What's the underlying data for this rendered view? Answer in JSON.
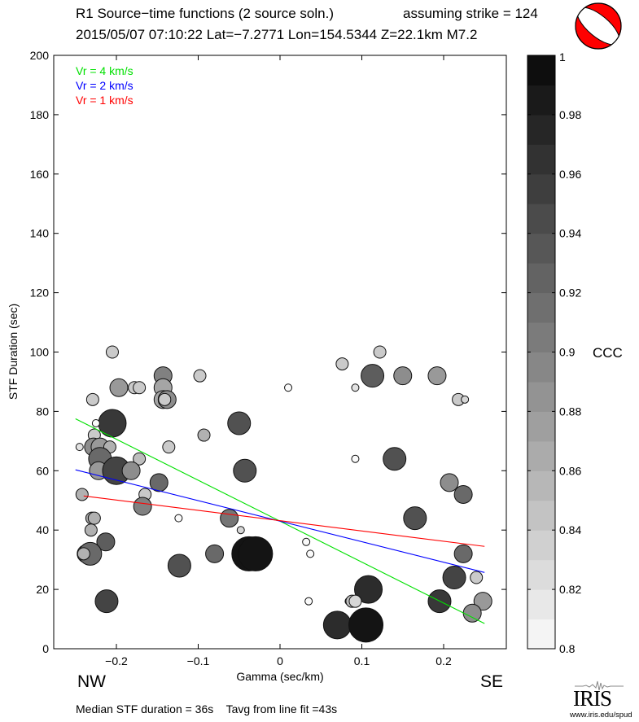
{
  "header": {
    "title": "R1 Source−time functions (2 source soln.)",
    "strike": "assuming strike = 124",
    "event": "2015/05/07 07:10:22  Lat=−7.2771 Lon=154.5344  Z=22.1km  M7.2"
  },
  "direction_labels": {
    "left": "NW",
    "right": "SE"
  },
  "footer": {
    "summary": "Median STF duration = 36s    Tavg from line fit =43s",
    "logo_text": "IRIS",
    "logo_url": "www.iris.edu/spud"
  },
  "colors": {
    "vr4": "#00e000",
    "vr2": "#0000ff",
    "vr1": "#ff0000",
    "beachball": "#ff0000"
  },
  "chart_data": {
    "type": "scatter",
    "xlabel": "Gamma (sec/km)",
    "ylabel": "STF Duration (sec)",
    "xlim": [
      -0.27,
      0.275
    ],
    "ylim": [
      0,
      200
    ],
    "xticks": [
      -0.2,
      -0.1,
      0,
      0.1,
      0.2
    ],
    "xtick_labels": [
      "−0.2",
      "−0.1",
      "0",
      "0.1",
      "0.2"
    ],
    "yticks": [
      0,
      20,
      40,
      60,
      80,
      100,
      120,
      140,
      160,
      180,
      200
    ],
    "ytick_labels": [
      "0",
      "20",
      "40",
      "60",
      "80",
      "100",
      "120",
      "140",
      "160",
      "180",
      "200"
    ],
    "grid": false,
    "legend": {
      "placement": "top-left",
      "entries": [
        {
          "label": "Vr = 4 km/s",
          "color": "#00e000"
        },
        {
          "label": "Vr = 2 km/s",
          "color": "#0000ff"
        },
        {
          "label": "Vr = 1 km/s",
          "color": "#ff0000"
        }
      ]
    },
    "lines": [
      {
        "name": "Vr = 4 km/s",
        "color": "#00e000",
        "x": [
          -0.25,
          0.25
        ],
        "y": [
          77.5,
          8.5
        ]
      },
      {
        "name": "Vr = 2 km/s",
        "color": "#0000ff",
        "x": [
          -0.25,
          0.25
        ],
        "y": [
          60.3,
          25.7
        ]
      },
      {
        "name": "Vr = 1 km/s",
        "color": "#ff0000",
        "x": [
          -0.24,
          0.25
        ],
        "y": [
          51.5,
          34.5
        ]
      }
    ],
    "colorbar": {
      "label": "CCC",
      "range": [
        0.8,
        1
      ],
      "ticks": [
        0.8,
        0.82,
        0.84,
        0.86,
        0.88,
        0.9,
        0.92,
        0.94,
        0.96,
        0.98,
        1
      ],
      "tick_labels": [
        "0.8",
        "0.82",
        "0.84",
        "0.86",
        "0.88",
        "0.9",
        "0.92",
        "0.94",
        "0.96",
        "0.98",
        "1"
      ],
      "bands": 20
    },
    "points": [
      {
        "x": -0.205,
        "y": 100,
        "ccc": 0.84,
        "size": 1
      },
      {
        "x": -0.098,
        "y": 92,
        "ccc": 0.84,
        "size": 1
      },
      {
        "x": -0.143,
        "y": 92,
        "ccc": 0.9,
        "size": 2
      },
      {
        "x": -0.143,
        "y": 88,
        "ccc": 0.87,
        "size": 2
      },
      {
        "x": -0.197,
        "y": 88,
        "ccc": 0.88,
        "size": 2
      },
      {
        "x": -0.178,
        "y": 88,
        "ccc": 0.84,
        "size": 1
      },
      {
        "x": -0.172,
        "y": 88,
        "ccc": 0.84,
        "size": 1
      },
      {
        "x": -0.143,
        "y": 84,
        "ccc": 0.87,
        "size": 2
      },
      {
        "x": -0.138,
        "y": 84,
        "ccc": 0.89,
        "size": 2
      },
      {
        "x": -0.141,
        "y": 84,
        "ccc": 0.84,
        "size": 1
      },
      {
        "x": -0.229,
        "y": 84,
        "ccc": 0.84,
        "size": 1
      },
      {
        "x": -0.205,
        "y": 76,
        "ccc": 0.96,
        "size": 4
      },
      {
        "x": -0.225,
        "y": 76,
        "ccc": 0.8,
        "size": 0
      },
      {
        "x": -0.05,
        "y": 76,
        "ccc": 0.94,
        "size": 3
      },
      {
        "x": -0.093,
        "y": 72,
        "ccc": 0.86,
        "size": 1
      },
      {
        "x": -0.227,
        "y": 72,
        "ccc": 0.84,
        "size": 1
      },
      {
        "x": -0.136,
        "y": 68,
        "ccc": 0.84,
        "size": 1
      },
      {
        "x": -0.245,
        "y": 68,
        "ccc": 0.82,
        "size": 0
      },
      {
        "x": -0.228,
        "y": 68,
        "ccc": 0.89,
        "size": 2
      },
      {
        "x": -0.22,
        "y": 68,
        "ccc": 0.88,
        "size": 2
      },
      {
        "x": -0.208,
        "y": 68,
        "ccc": 0.86,
        "size": 1
      },
      {
        "x": -0.22,
        "y": 64,
        "ccc": 0.92,
        "size": 3
      },
      {
        "x": -0.172,
        "y": 64,
        "ccc": 0.85,
        "size": 1
      },
      {
        "x": -0.043,
        "y": 60,
        "ccc": 0.94,
        "size": 3
      },
      {
        "x": -0.222,
        "y": 60,
        "ccc": 0.88,
        "size": 2
      },
      {
        "x": -0.2,
        "y": 60,
        "ccc": 0.95,
        "size": 4
      },
      {
        "x": -0.182,
        "y": 60,
        "ccc": 0.89,
        "size": 2
      },
      {
        "x": -0.148,
        "y": 56,
        "ccc": 0.92,
        "size": 2
      },
      {
        "x": -0.242,
        "y": 52,
        "ccc": 0.86,
        "size": 1
      },
      {
        "x": -0.165,
        "y": 52,
        "ccc": 0.84,
        "size": 1
      },
      {
        "x": -0.168,
        "y": 48,
        "ccc": 0.9,
        "size": 2
      },
      {
        "x": -0.124,
        "y": 44,
        "ccc": 0.8,
        "size": 0
      },
      {
        "x": -0.23,
        "y": 44,
        "ccc": 0.87,
        "size": 1
      },
      {
        "x": -0.227,
        "y": 44,
        "ccc": 0.86,
        "size": 1
      },
      {
        "x": -0.062,
        "y": 44,
        "ccc": 0.91,
        "size": 2
      },
      {
        "x": -0.048,
        "y": 40,
        "ccc": 0.83,
        "size": 0
      },
      {
        "x": -0.231,
        "y": 40,
        "ccc": 0.86,
        "size": 1
      },
      {
        "x": -0.213,
        "y": 36,
        "ccc": 0.93,
        "size": 2
      },
      {
        "x": -0.237,
        "y": 32,
        "ccc": 0.88,
        "size": 2
      },
      {
        "x": -0.232,
        "y": 32,
        "ccc": 0.92,
        "size": 3
      },
      {
        "x": -0.24,
        "y": 32,
        "ccc": 0.86,
        "size": 1
      },
      {
        "x": -0.08,
        "y": 32,
        "ccc": 0.92,
        "size": 2
      },
      {
        "x": -0.038,
        "y": 32,
        "ccc": 0.99,
        "size": 5
      },
      {
        "x": -0.03,
        "y": 32,
        "ccc": 0.99,
        "size": 5
      },
      {
        "x": -0.123,
        "y": 28,
        "ccc": 0.94,
        "size": 3
      },
      {
        "x": -0.212,
        "y": 16,
        "ccc": 0.95,
        "size": 3
      },
      {
        "x": 0.01,
        "y": 88,
        "ccc": 0.8,
        "size": 0
      },
      {
        "x": 0.076,
        "y": 96,
        "ccc": 0.84,
        "size": 1
      },
      {
        "x": 0.122,
        "y": 100,
        "ccc": 0.84,
        "size": 1
      },
      {
        "x": 0.092,
        "y": 88,
        "ccc": 0.82,
        "size": 0
      },
      {
        "x": 0.113,
        "y": 92,
        "ccc": 0.93,
        "size": 3
      },
      {
        "x": 0.15,
        "y": 92,
        "ccc": 0.89,
        "size": 2
      },
      {
        "x": 0.192,
        "y": 92,
        "ccc": 0.88,
        "size": 2
      },
      {
        "x": 0.218,
        "y": 84,
        "ccc": 0.84,
        "size": 1
      },
      {
        "x": 0.226,
        "y": 84,
        "ccc": 0.83,
        "size": 0
      },
      {
        "x": 0.092,
        "y": 64,
        "ccc": 0.8,
        "size": 0
      },
      {
        "x": 0.14,
        "y": 64,
        "ccc": 0.94,
        "size": 3
      },
      {
        "x": 0.207,
        "y": 56,
        "ccc": 0.89,
        "size": 2
      },
      {
        "x": 0.224,
        "y": 52,
        "ccc": 0.92,
        "size": 2
      },
      {
        "x": 0.165,
        "y": 44,
        "ccc": 0.94,
        "size": 3
      },
      {
        "x": 0.032,
        "y": 36,
        "ccc": 0.8,
        "size": 0
      },
      {
        "x": 0.037,
        "y": 32,
        "ccc": 0.8,
        "size": 0
      },
      {
        "x": 0.224,
        "y": 32,
        "ccc": 0.92,
        "size": 2
      },
      {
        "x": 0.213,
        "y": 24,
        "ccc": 0.95,
        "size": 3
      },
      {
        "x": 0.24,
        "y": 24,
        "ccc": 0.84,
        "size": 1
      },
      {
        "x": 0.108,
        "y": 20,
        "ccc": 0.97,
        "size": 4
      },
      {
        "x": 0.195,
        "y": 16,
        "ccc": 0.96,
        "size": 3
      },
      {
        "x": 0.035,
        "y": 16,
        "ccc": 0.8,
        "size": 0
      },
      {
        "x": 0.084,
        "y": 16,
        "ccc": 0.87,
        "size": 0
      },
      {
        "x": 0.088,
        "y": 16,
        "ccc": 0.85,
        "size": 1
      },
      {
        "x": 0.092,
        "y": 16,
        "ccc": 0.83,
        "size": 1
      },
      {
        "x": 0.248,
        "y": 16,
        "ccc": 0.88,
        "size": 2
      },
      {
        "x": 0.235,
        "y": 12,
        "ccc": 0.89,
        "size": 2
      },
      {
        "x": 0.07,
        "y": 8,
        "ccc": 0.97,
        "size": 4
      },
      {
        "x": 0.105,
        "y": 8,
        "ccc": 0.99,
        "size": 5
      }
    ]
  }
}
